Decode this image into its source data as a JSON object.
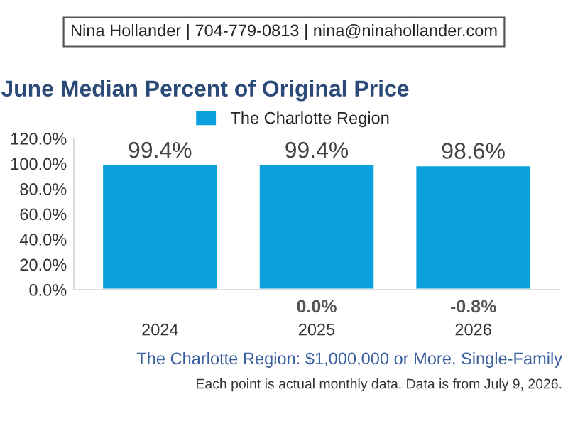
{
  "chart_data": {
    "type": "bar",
    "title": "June Median Percent of Original Price",
    "subtitle": "The Charlotte Region: $1,000,000 or More, Single-Family",
    "categories": [
      "2024",
      "2025",
      "2026"
    ],
    "series": [
      {
        "name": "The Charlotte Region",
        "color": "#0aa0dc",
        "values": [
          99.4,
          99.4,
          98.6
        ],
        "value_labels": [
          "99.4%",
          "99.4%",
          "98.6%"
        ]
      }
    ],
    "ylim": [
      0,
      120
    ],
    "yticks": [
      {
        "value": 0,
        "label": "0.0%"
      },
      {
        "value": 20,
        "label": "20.0%"
      },
      {
        "value": 40,
        "label": "40.0%"
      },
      {
        "value": 60,
        "label": "60.0%"
      },
      {
        "value": 80,
        "label": "80.0%"
      },
      {
        "value": 100,
        "label": "100.0%"
      },
      {
        "value": 120,
        "label": "120.0%"
      }
    ],
    "grid": false,
    "legend": "top",
    "annotations": [
      "Nina Hollander | 704-779-0813 | nina@ninahollander.com",
      "Each point is actual monthly data. Data is from July 9, 2026.",
      "0.0%",
      "-0.8%"
    ]
  }
}
